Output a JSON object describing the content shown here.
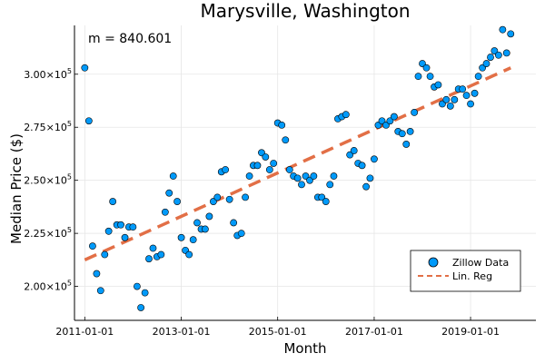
{
  "chart_data": {
    "type": "scatter",
    "title": "Marysville, Washington",
    "xlabel": "Month",
    "ylabel": "Median Price ($)",
    "annotation": "m = 840.601",
    "x_type": "date",
    "xlim": [
      "2010-10-15",
      "2020-05-10"
    ],
    "ylim": [
      184000,
      323000
    ],
    "x_ticks": [
      "2011-01-01",
      "2013-01-01",
      "2015-01-01",
      "2017-01-01",
      "2019-01-01"
    ],
    "y_ticks": [
      {
        "value": 200000,
        "mantissa": "2.00",
        "exp": "5"
      },
      {
        "value": 225000,
        "mantissa": "2.25",
        "exp": "5"
      },
      {
        "value": 250000,
        "mantissa": "2.50",
        "exp": "5"
      },
      {
        "value": 275000,
        "mantissa": "2.75",
        "exp": "5"
      },
      {
        "value": 300000,
        "mantissa": "3.00",
        "exp": "5"
      }
    ],
    "y_tick_base": "×10",
    "grid": true,
    "legend_position": "bottom-right",
    "colors": {
      "points": "#009AFA",
      "regression": "#E26F46"
    },
    "series": [
      {
        "name": "Zillow Data",
        "kind": "scatter",
        "x": [
          "2011-01-01",
          "2011-02-01",
          "2011-03-01",
          "2011-04-01",
          "2011-05-01",
          "2011-06-01",
          "2011-07-01",
          "2011-08-01",
          "2011-09-01",
          "2011-10-01",
          "2011-11-01",
          "2011-12-01",
          "2012-01-01",
          "2012-02-01",
          "2012-03-01",
          "2012-04-01",
          "2012-05-01",
          "2012-06-01",
          "2012-07-01",
          "2012-08-01",
          "2012-09-01",
          "2012-10-01",
          "2012-11-01",
          "2012-12-01",
          "2013-01-01",
          "2013-02-01",
          "2013-03-01",
          "2013-04-01",
          "2013-05-01",
          "2013-06-01",
          "2013-07-01",
          "2013-08-01",
          "2013-09-01",
          "2013-10-01",
          "2013-11-01",
          "2013-12-01",
          "2014-01-01",
          "2014-02-01",
          "2014-03-01",
          "2014-04-01",
          "2014-05-01",
          "2014-06-01",
          "2014-07-01",
          "2014-08-01",
          "2014-09-01",
          "2014-10-01",
          "2014-11-01",
          "2014-12-01",
          "2015-01-01",
          "2015-02-01",
          "2015-03-01",
          "2015-04-01",
          "2015-05-01",
          "2015-06-01",
          "2015-07-01",
          "2015-08-01",
          "2015-09-01",
          "2015-10-01",
          "2015-11-01",
          "2015-12-01",
          "2016-01-01",
          "2016-02-01",
          "2016-03-01",
          "2016-04-01",
          "2016-05-01",
          "2016-06-01",
          "2016-07-01",
          "2016-08-01",
          "2016-09-01",
          "2016-10-01",
          "2016-11-01",
          "2016-12-01",
          "2017-01-01",
          "2017-02-01",
          "2017-03-01",
          "2017-04-01",
          "2017-05-01",
          "2017-06-01",
          "2017-07-01",
          "2017-08-01",
          "2017-09-01",
          "2017-10-01",
          "2017-11-01",
          "2017-12-01",
          "2018-01-01",
          "2018-02-01",
          "2018-03-01",
          "2018-04-01",
          "2018-05-01",
          "2018-06-01",
          "2018-07-01",
          "2018-08-01",
          "2018-09-01",
          "2018-10-01",
          "2018-11-01",
          "2018-12-01",
          "2019-01-01",
          "2019-02-01",
          "2019-03-01",
          "2019-04-01",
          "2019-05-01",
          "2019-06-01",
          "2019-07-01",
          "2019-08-01",
          "2019-09-01",
          "2019-10-01",
          "2019-11-01"
        ],
        "y": [
          303000,
          278000,
          219000,
          206000,
          198000,
          215000,
          226000,
          240000,
          229000,
          229000,
          223000,
          228000,
          228000,
          200000,
          190000,
          197000,
          213000,
          218000,
          214000,
          215000,
          235000,
          244000,
          252000,
          240000,
          223000,
          217000,
          215000,
          222000,
          230000,
          227000,
          227000,
          233000,
          240000,
          242000,
          254000,
          255000,
          241000,
          230000,
          224000,
          225000,
          242000,
          252000,
          257000,
          257000,
          263000,
          261000,
          255000,
          258000,
          277000,
          276000,
          269000,
          255000,
          252000,
          251000,
          248000,
          252000,
          250000,
          252000,
          242000,
          242000,
          240000,
          248000,
          252000,
          279000,
          280000,
          281000,
          262000,
          264000,
          258000,
          257000,
          247000,
          251000,
          260000,
          276000,
          278000,
          276000,
          278000,
          280000,
          273000,
          272000,
          267000,
          273000,
          282000,
          299000,
          305000,
          303000,
          299000,
          294000,
          295000,
          286000,
          288000,
          285000,
          288000,
          293000,
          293000,
          290000,
          286000,
          291000,
          299000,
          303000,
          305000,
          308000,
          311000,
          309000,
          321000,
          310000,
          319000
        ]
      },
      {
        "name": "Lin. Reg",
        "kind": "line",
        "x": [
          "2011-01-01",
          "2019-11-01"
        ],
        "y": [
          212500,
          303000
        ]
      }
    ]
  }
}
